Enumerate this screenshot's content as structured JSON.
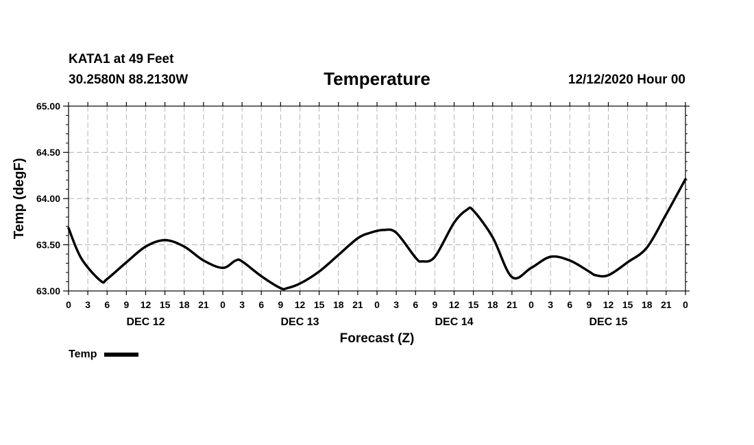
{
  "header": {
    "station": "KATA1 at 49 Feet",
    "coords": "30.2580N 88.2130W",
    "datetime": "12/12/2020 Hour 00"
  },
  "chart_data": {
    "type": "line",
    "title": "Temperature",
    "xlabel": "Forecast (Z)",
    "ylabel": "Temp (degF)",
    "ylim": [
      63.0,
      65.0
    ],
    "yticks": [
      "63.00",
      "63.50",
      "64.00",
      "64.50",
      "65.00"
    ],
    "xlim": [
      0,
      96
    ],
    "x_tick_labels": [
      "0",
      "3",
      "6",
      "9",
      "12",
      "15",
      "18",
      "21",
      "0",
      "3",
      "6",
      "9",
      "12",
      "15",
      "18",
      "21",
      "0",
      "3",
      "6",
      "9",
      "12",
      "15",
      "18",
      "21",
      "0",
      "3",
      "6",
      "9",
      "12",
      "15",
      "18",
      "21",
      "0"
    ],
    "date_labels": [
      {
        "label": "DEC 12",
        "x": 12
      },
      {
        "label": "DEC 13",
        "x": 36
      },
      {
        "label": "DEC 14",
        "x": 60
      },
      {
        "label": "DEC 15",
        "x": 84
      }
    ],
    "grid": true,
    "legend": "bottom-left",
    "series": [
      {
        "name": "Temp",
        "x": [
          0,
          2,
          5,
          6,
          9,
          12,
          15,
          18,
          21,
          24,
          26,
          27,
          30,
          33,
          34,
          36,
          39,
          42,
          45,
          47,
          49,
          51,
          54,
          55,
          57,
          60,
          62,
          63,
          66,
          69,
          72,
          75,
          78,
          81,
          82,
          84,
          87,
          90,
          93,
          96
        ],
        "values": [
          63.68,
          63.35,
          63.11,
          63.13,
          63.31,
          63.48,
          63.55,
          63.48,
          63.33,
          63.25,
          63.33,
          63.32,
          63.16,
          63.03,
          63.03,
          63.08,
          63.21,
          63.39,
          63.57,
          63.63,
          63.66,
          63.63,
          63.36,
          63.32,
          63.37,
          63.74,
          63.88,
          63.87,
          63.58,
          63.15,
          63.25,
          63.37,
          63.33,
          63.21,
          63.17,
          63.17,
          63.31,
          63.47,
          63.83,
          64.21
        ]
      }
    ]
  }
}
